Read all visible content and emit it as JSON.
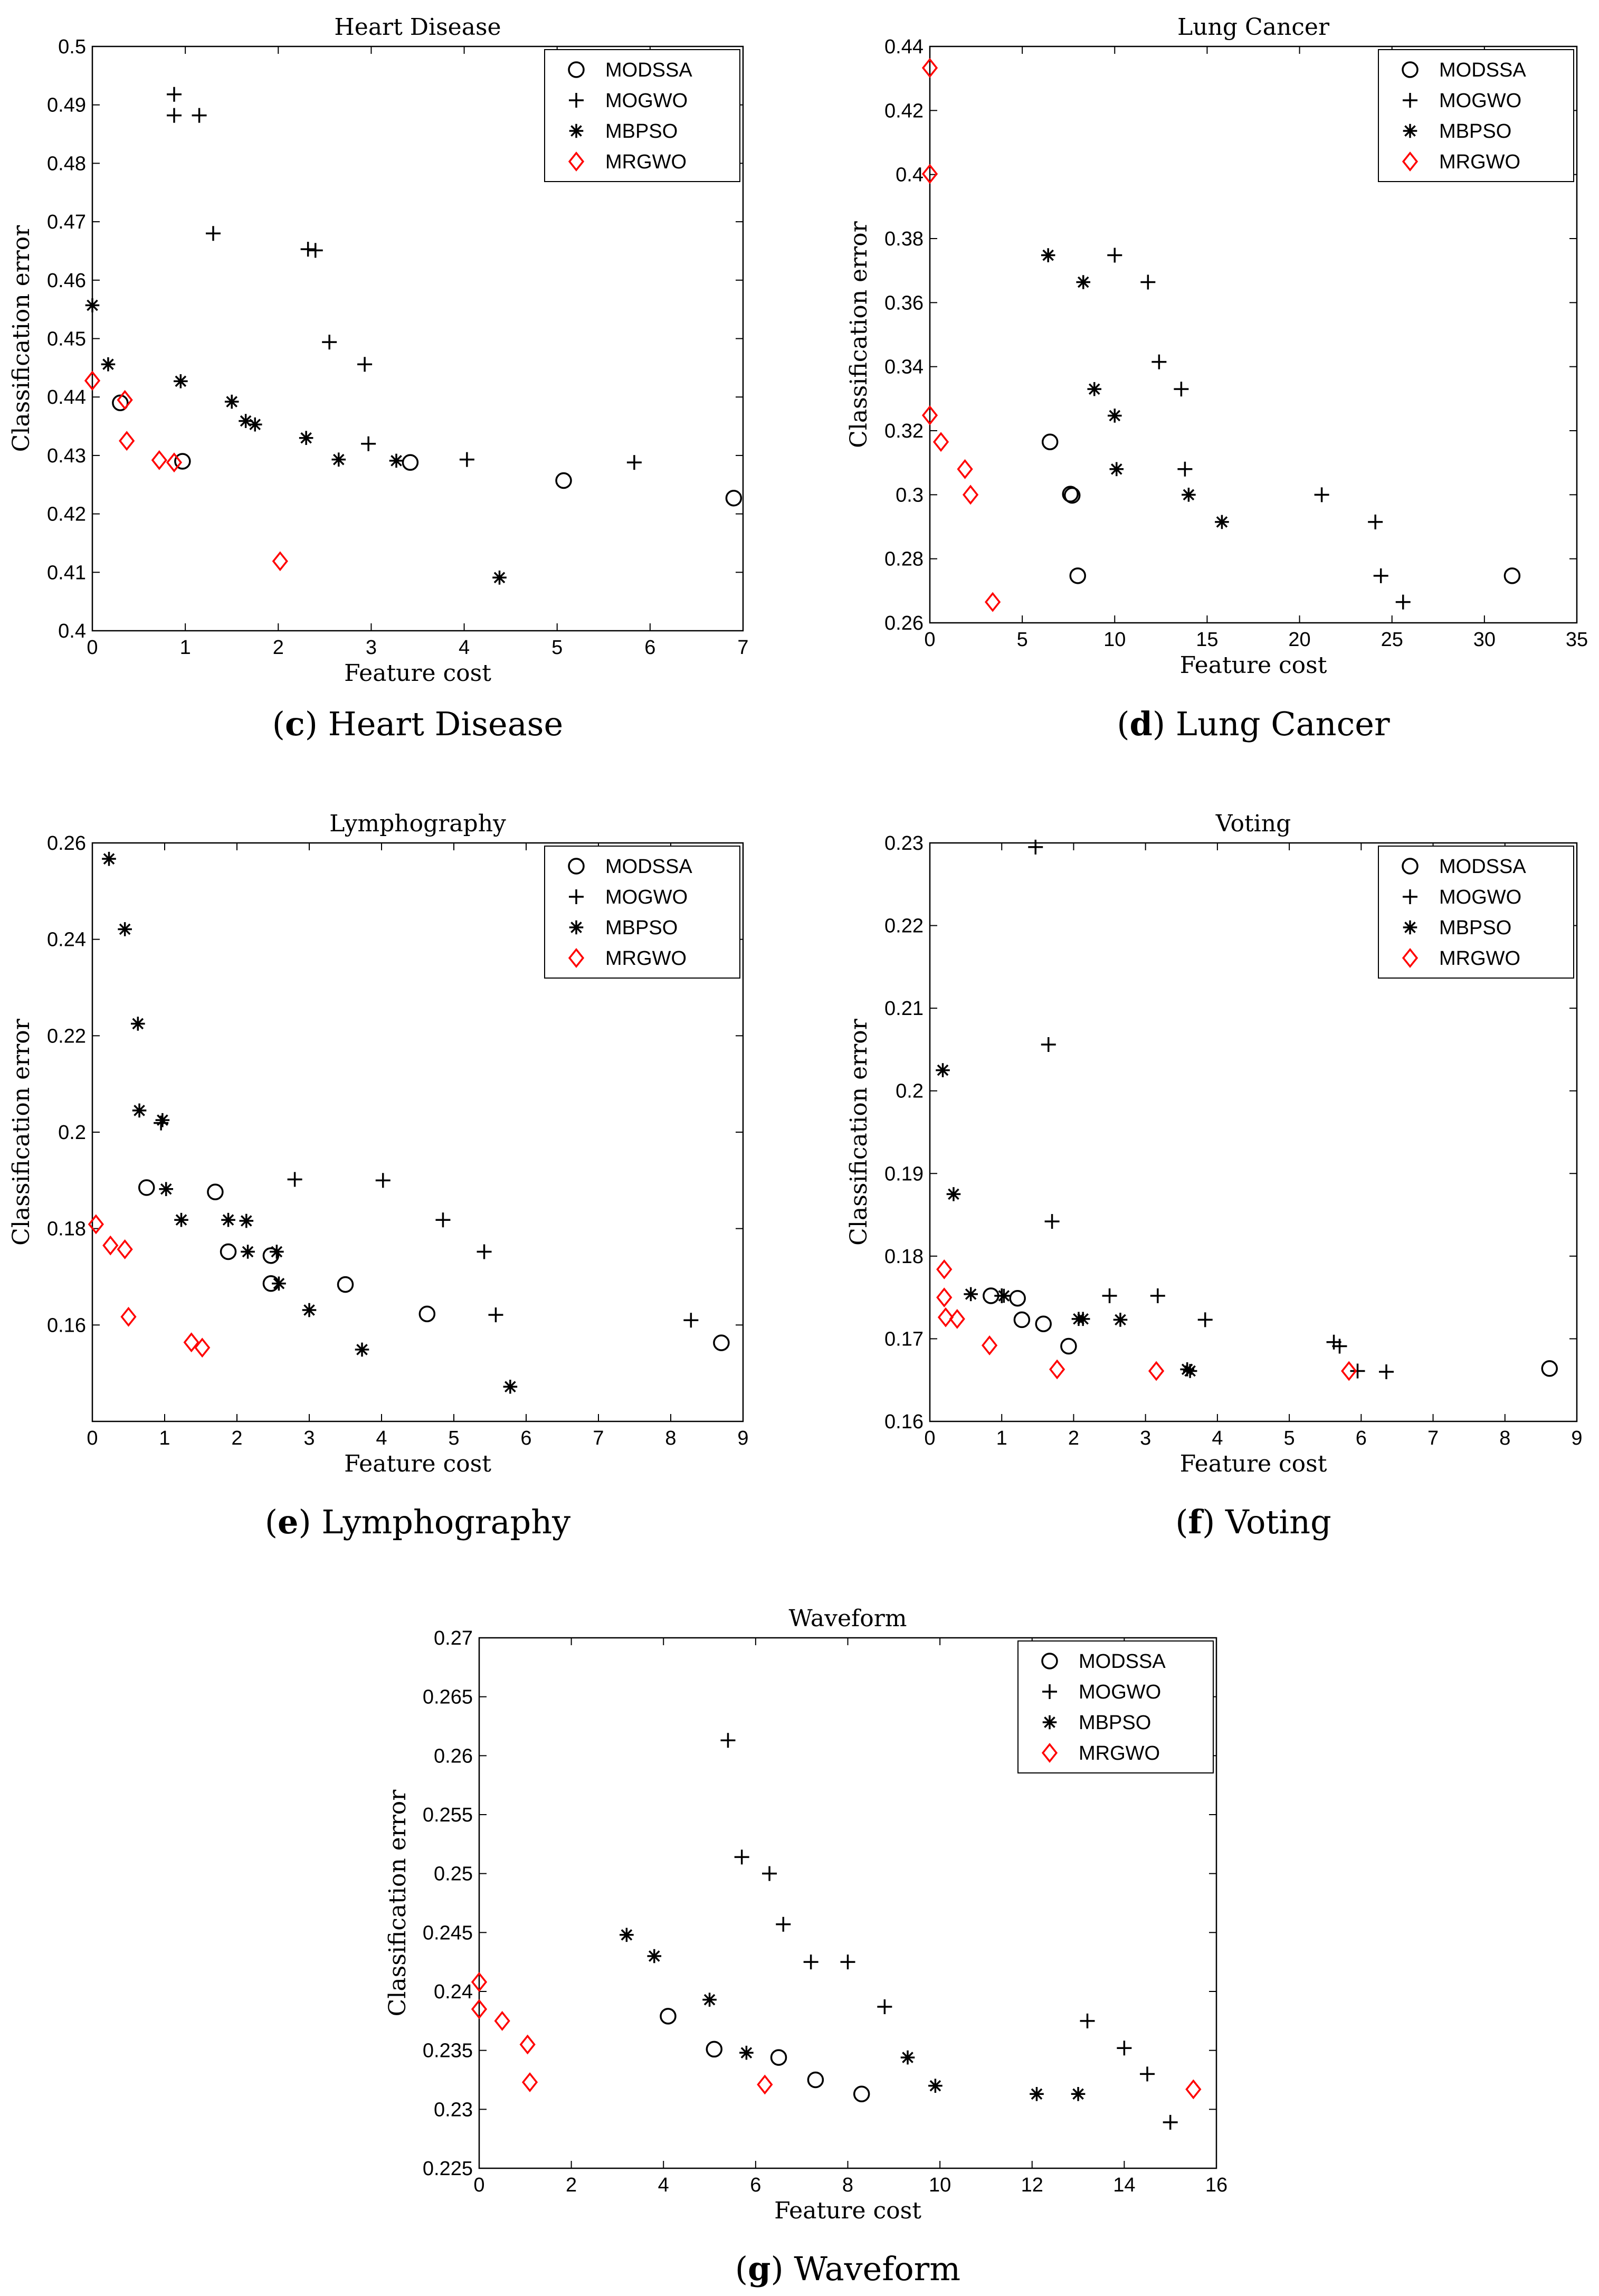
{
  "figure": {
    "legend_labels": [
      "MODSSA",
      "MOGWO",
      "MBPSO",
      "MRGWO"
    ],
    "colors": {
      "MODSSA": "#000000",
      "MOGWO": "#000000",
      "MBPSO": "#000000",
      "MRGWO": "#ff0000"
    },
    "markers": {
      "MODSSA": "circle",
      "MOGWO": "plus",
      "MBPSO": "asterisk",
      "MRGWO": "diamond"
    }
  },
  "chart_data": [
    {
      "id": "heart",
      "type": "scatter",
      "title": "Heart Disease",
      "caption_letter": "c",
      "caption_text": "Heart Disease",
      "xlabel": "Feature cost",
      "ylabel": "Classification error",
      "xlim": [
        0,
        7
      ],
      "ylim": [
        0.4,
        0.5
      ],
      "xticks": [
        0,
        1,
        2,
        3,
        4,
        5,
        6,
        7
      ],
      "xtick_labels": [
        "0",
        "1",
        "2",
        "3",
        "4",
        "5",
        "6",
        "7"
      ],
      "yticks": [
        0.4,
        0.41,
        0.42,
        0.43,
        0.44,
        0.45,
        0.46,
        0.47,
        0.48,
        0.49,
        0.5
      ],
      "ytick_labels": [
        "0.4",
        "0.41",
        "0.42",
        "0.43",
        "0.44",
        "0.45",
        "0.46",
        "0.47",
        "0.48",
        "0.49",
        "0.5"
      ],
      "legend": "top-right",
      "series": [
        {
          "name": "MODSSA",
          "x": [
            0.3,
            0.97,
            3.42,
            5.07,
            6.9
          ],
          "y": [
            0.439,
            0.429,
            0.4288,
            0.4257,
            0.4227
          ]
        },
        {
          "name": "MOGWO",
          "x": [
            0.88,
            0.88,
            1.15,
            1.3,
            2.32,
            2.4,
            2.55,
            2.93,
            2.97,
            4.03,
            5.83
          ],
          "y": [
            0.4918,
            0.4882,
            0.4882,
            0.468,
            0.4653,
            0.4651,
            0.4494,
            0.4456,
            0.432,
            0.4293,
            0.4288
          ]
        },
        {
          "name": "MBPSO",
          "x": [
            0.0,
            0.17,
            0.95,
            1.5,
            1.65,
            1.75,
            2.3,
            2.65,
            3.27,
            4.38
          ],
          "y": [
            0.4557,
            0.4456,
            0.4427,
            0.4392,
            0.4359,
            0.4353,
            0.433,
            0.4293,
            0.4291,
            0.4091
          ]
        },
        {
          "name": "MRGWO",
          "x": [
            0.0,
            0.35,
            0.37,
            0.72,
            0.88,
            2.02
          ],
          "y": [
            0.4428,
            0.4395,
            0.4325,
            0.4292,
            0.4288,
            0.4119
          ]
        }
      ]
    },
    {
      "id": "lung",
      "type": "scatter",
      "title": "Lung Cancer",
      "caption_letter": "d",
      "caption_text": "Lung Cancer",
      "xlabel": "Feature cost",
      "ylabel": "Classification error",
      "xlim": [
        0,
        35
      ],
      "ylim": [
        0.26,
        0.44
      ],
      "xticks": [
        0,
        5,
        10,
        15,
        20,
        25,
        30,
        35
      ],
      "xtick_labels": [
        "0",
        "5",
        "10",
        "15",
        "20",
        "25",
        "30",
        "35"
      ],
      "yticks": [
        0.26,
        0.28,
        0.3,
        0.32,
        0.34,
        0.36,
        0.38,
        0.4,
        0.42,
        0.44
      ],
      "ytick_labels": [
        "0.26",
        "0.28",
        "0.3",
        "0.32",
        "0.34",
        "0.36",
        "0.38",
        "0.4",
        "0.42",
        "0.44"
      ],
      "legend": "top-right",
      "series": [
        {
          "name": "MODSSA",
          "x": [
            6.5,
            7.6,
            7.7,
            8.0,
            31.5
          ],
          "y": [
            0.3165,
            0.3002,
            0.2998,
            0.2747,
            0.2747
          ]
        },
        {
          "name": "MOGWO",
          "x": [
            10.0,
            11.8,
            12.4,
            13.6,
            13.8,
            21.2,
            24.1,
            24.4,
            25.6
          ],
          "y": [
            0.3748,
            0.3664,
            0.3415,
            0.333,
            0.308,
            0.3,
            0.2915,
            0.2747,
            0.2665
          ]
        },
        {
          "name": "MBPSO",
          "x": [
            6.4,
            8.3,
            8.9,
            10.0,
            10.1,
            14.0,
            15.8
          ],
          "y": [
            0.3748,
            0.3664,
            0.333,
            0.3247,
            0.308,
            0.3,
            0.2915
          ]
        },
        {
          "name": "MRGWO",
          "x": [
            0.0,
            0.0,
            0.0,
            0.6,
            1.9,
            2.2,
            3.4
          ],
          "y": [
            0.4333,
            0.4002,
            0.3248,
            0.3165,
            0.308,
            0.3,
            0.2665
          ]
        }
      ]
    },
    {
      "id": "lympho",
      "type": "scatter",
      "title": "Lymphography",
      "caption_letter": "e",
      "caption_text": "Lymphography",
      "xlabel": "Feature cost",
      "ylabel": "Classification error",
      "xlim": [
        0,
        9
      ],
      "ylim": [
        0.14,
        0.26
      ],
      "xticks": [
        0,
        1,
        2,
        3,
        4,
        5,
        6,
        7,
        8,
        9
      ],
      "xtick_labels": [
        "0",
        "1",
        "2",
        "3",
        "4",
        "5",
        "6",
        "7",
        "8",
        "9"
      ],
      "yticks": [
        0.16,
        0.18,
        0.2,
        0.22,
        0.24,
        0.26
      ],
      "ytick_labels": [
        "0.16",
        "0.18",
        "0.2",
        "0.22",
        "0.24",
        "0.26"
      ],
      "legend": "top-right",
      "series": [
        {
          "name": "MODSSA",
          "x": [
            0.75,
            1.7,
            1.88,
            2.47,
            2.47,
            3.5,
            4.63,
            8.7
          ],
          "y": [
            0.1885,
            0.1876,
            0.1752,
            0.1744,
            0.1686,
            0.1684,
            0.1623,
            0.1563
          ]
        },
        {
          "name": "MOGWO",
          "x": [
            0.95,
            2.8,
            4.02,
            4.85,
            5.42,
            5.58,
            8.28
          ],
          "y": [
            0.2019,
            0.1902,
            0.19,
            0.1818,
            0.1752,
            0.1621,
            0.161
          ]
        },
        {
          "name": "MBPSO",
          "x": [
            0.23,
            0.45,
            0.63,
            0.65,
            0.97,
            1.02,
            1.23,
            1.88,
            2.13,
            2.15,
            2.55,
            2.58,
            3.0,
            3.73,
            5.78
          ],
          "y": [
            0.2567,
            0.2421,
            0.2225,
            0.2045,
            0.2025,
            0.1882,
            0.1818,
            0.1818,
            0.1816,
            0.1752,
            0.1752,
            0.1686,
            0.1631,
            0.1549,
            0.1472
          ]
        },
        {
          "name": "MRGWO",
          "x": [
            0.05,
            0.25,
            0.45,
            0.5,
            1.37,
            1.52
          ],
          "y": [
            0.1809,
            0.1765,
            0.1757,
            0.1617,
            0.1564,
            0.1553
          ]
        }
      ]
    },
    {
      "id": "voting",
      "type": "scatter",
      "title": "Voting",
      "caption_letter": "f",
      "caption_text": "Voting",
      "xlabel": "Feature cost",
      "ylabel": "Classification error",
      "xlim": [
        0,
        9
      ],
      "ylim": [
        0.16,
        0.23
      ],
      "xticks": [
        0,
        1,
        2,
        3,
        4,
        5,
        6,
        7,
        8,
        9
      ],
      "xtick_labels": [
        "0",
        "1",
        "2",
        "3",
        "4",
        "5",
        "6",
        "7",
        "8",
        "9"
      ],
      "yticks": [
        0.16,
        0.17,
        0.18,
        0.19,
        0.2,
        0.21,
        0.22,
        0.23
      ],
      "ytick_labels": [
        "0.16",
        "0.17",
        "0.18",
        "0.19",
        "0.2",
        "0.21",
        "0.22",
        "0.23"
      ],
      "legend": "top-right",
      "series": [
        {
          "name": "MODSSA",
          "x": [
            0.85,
            1.22,
            1.28,
            1.58,
            1.93,
            8.62
          ],
          "y": [
            0.1752,
            0.1749,
            0.1723,
            0.1718,
            0.1691,
            0.1664
          ]
        },
        {
          "name": "MOGWO",
          "x": [
            1.47,
            1.65,
            1.7,
            1.0,
            2.5,
            3.17,
            3.83,
            5.62,
            5.7,
            5.95,
            6.35
          ],
          "y": [
            0.2295,
            0.2056,
            0.1842,
            0.1752,
            0.1752,
            0.1752,
            0.1723,
            0.1696,
            0.1691,
            0.1661,
            0.166
          ]
        },
        {
          "name": "MBPSO",
          "x": [
            0.18,
            0.33,
            0.57,
            1.03,
            2.07,
            2.13,
            2.65,
            3.58,
            3.62
          ],
          "y": [
            0.2025,
            0.1875,
            0.1754,
            0.1752,
            0.1724,
            0.1724,
            0.1723,
            0.1663,
            0.1661
          ]
        },
        {
          "name": "MRGWO",
          "x": [
            0.2,
            0.2,
            0.22,
            0.38,
            0.83,
            1.77,
            3.15,
            5.83
          ],
          "y": [
            0.1784,
            0.175,
            0.1726,
            0.1724,
            0.1692,
            0.1663,
            0.1661,
            0.1661
          ]
        }
      ]
    },
    {
      "id": "waveform",
      "type": "scatter",
      "title": "Waveform",
      "caption_letter": "g",
      "caption_text": "Waveform",
      "xlabel": "Feature cost",
      "ylabel": "Classification error",
      "xlim": [
        0,
        16
      ],
      "ylim": [
        0.225,
        0.27
      ],
      "xticks": [
        0,
        2,
        4,
        6,
        8,
        10,
        12,
        14,
        16
      ],
      "xtick_labels": [
        "0",
        "2",
        "4",
        "6",
        "8",
        "10",
        "12",
        "14",
        "16"
      ],
      "yticks": [
        0.225,
        0.23,
        0.235,
        0.24,
        0.245,
        0.25,
        0.255,
        0.26,
        0.265,
        0.27
      ],
      "ytick_labels": [
        "0.225",
        "0.23",
        "0.235",
        "0.24",
        "0.245",
        "0.25",
        "0.255",
        "0.26",
        "0.265",
        "0.27"
      ],
      "legend": "top-right",
      "series": [
        {
          "name": "MODSSA",
          "x": [
            4.1,
            5.1,
            6.5,
            7.3,
            8.3
          ],
          "y": [
            0.2379,
            0.2351,
            0.2344,
            0.2325,
            0.2313
          ]
        },
        {
          "name": "MOGWO",
          "x": [
            5.4,
            5.7,
            6.3,
            6.6,
            7.2,
            8.0,
            8.8,
            13.2,
            14.0,
            14.5,
            15.0
          ],
          "y": [
            0.2613,
            0.2514,
            0.25,
            0.2457,
            0.2425,
            0.2425,
            0.2387,
            0.2375,
            0.2352,
            0.233,
            0.2289
          ]
        },
        {
          "name": "MBPSO",
          "x": [
            3.2,
            3.8,
            5.0,
            5.8,
            9.3,
            9.9,
            12.1,
            13.0
          ],
          "y": [
            0.2448,
            0.243,
            0.2393,
            0.2348,
            0.2344,
            0.232,
            0.2313,
            0.2313
          ]
        },
        {
          "name": "MRGWO",
          "x": [
            0.0,
            0.0,
            0.5,
            1.05,
            1.1,
            6.2,
            15.5
          ],
          "y": [
            0.2408,
            0.2385,
            0.2375,
            0.2355,
            0.2323,
            0.2321,
            0.2317
          ]
        }
      ]
    }
  ]
}
